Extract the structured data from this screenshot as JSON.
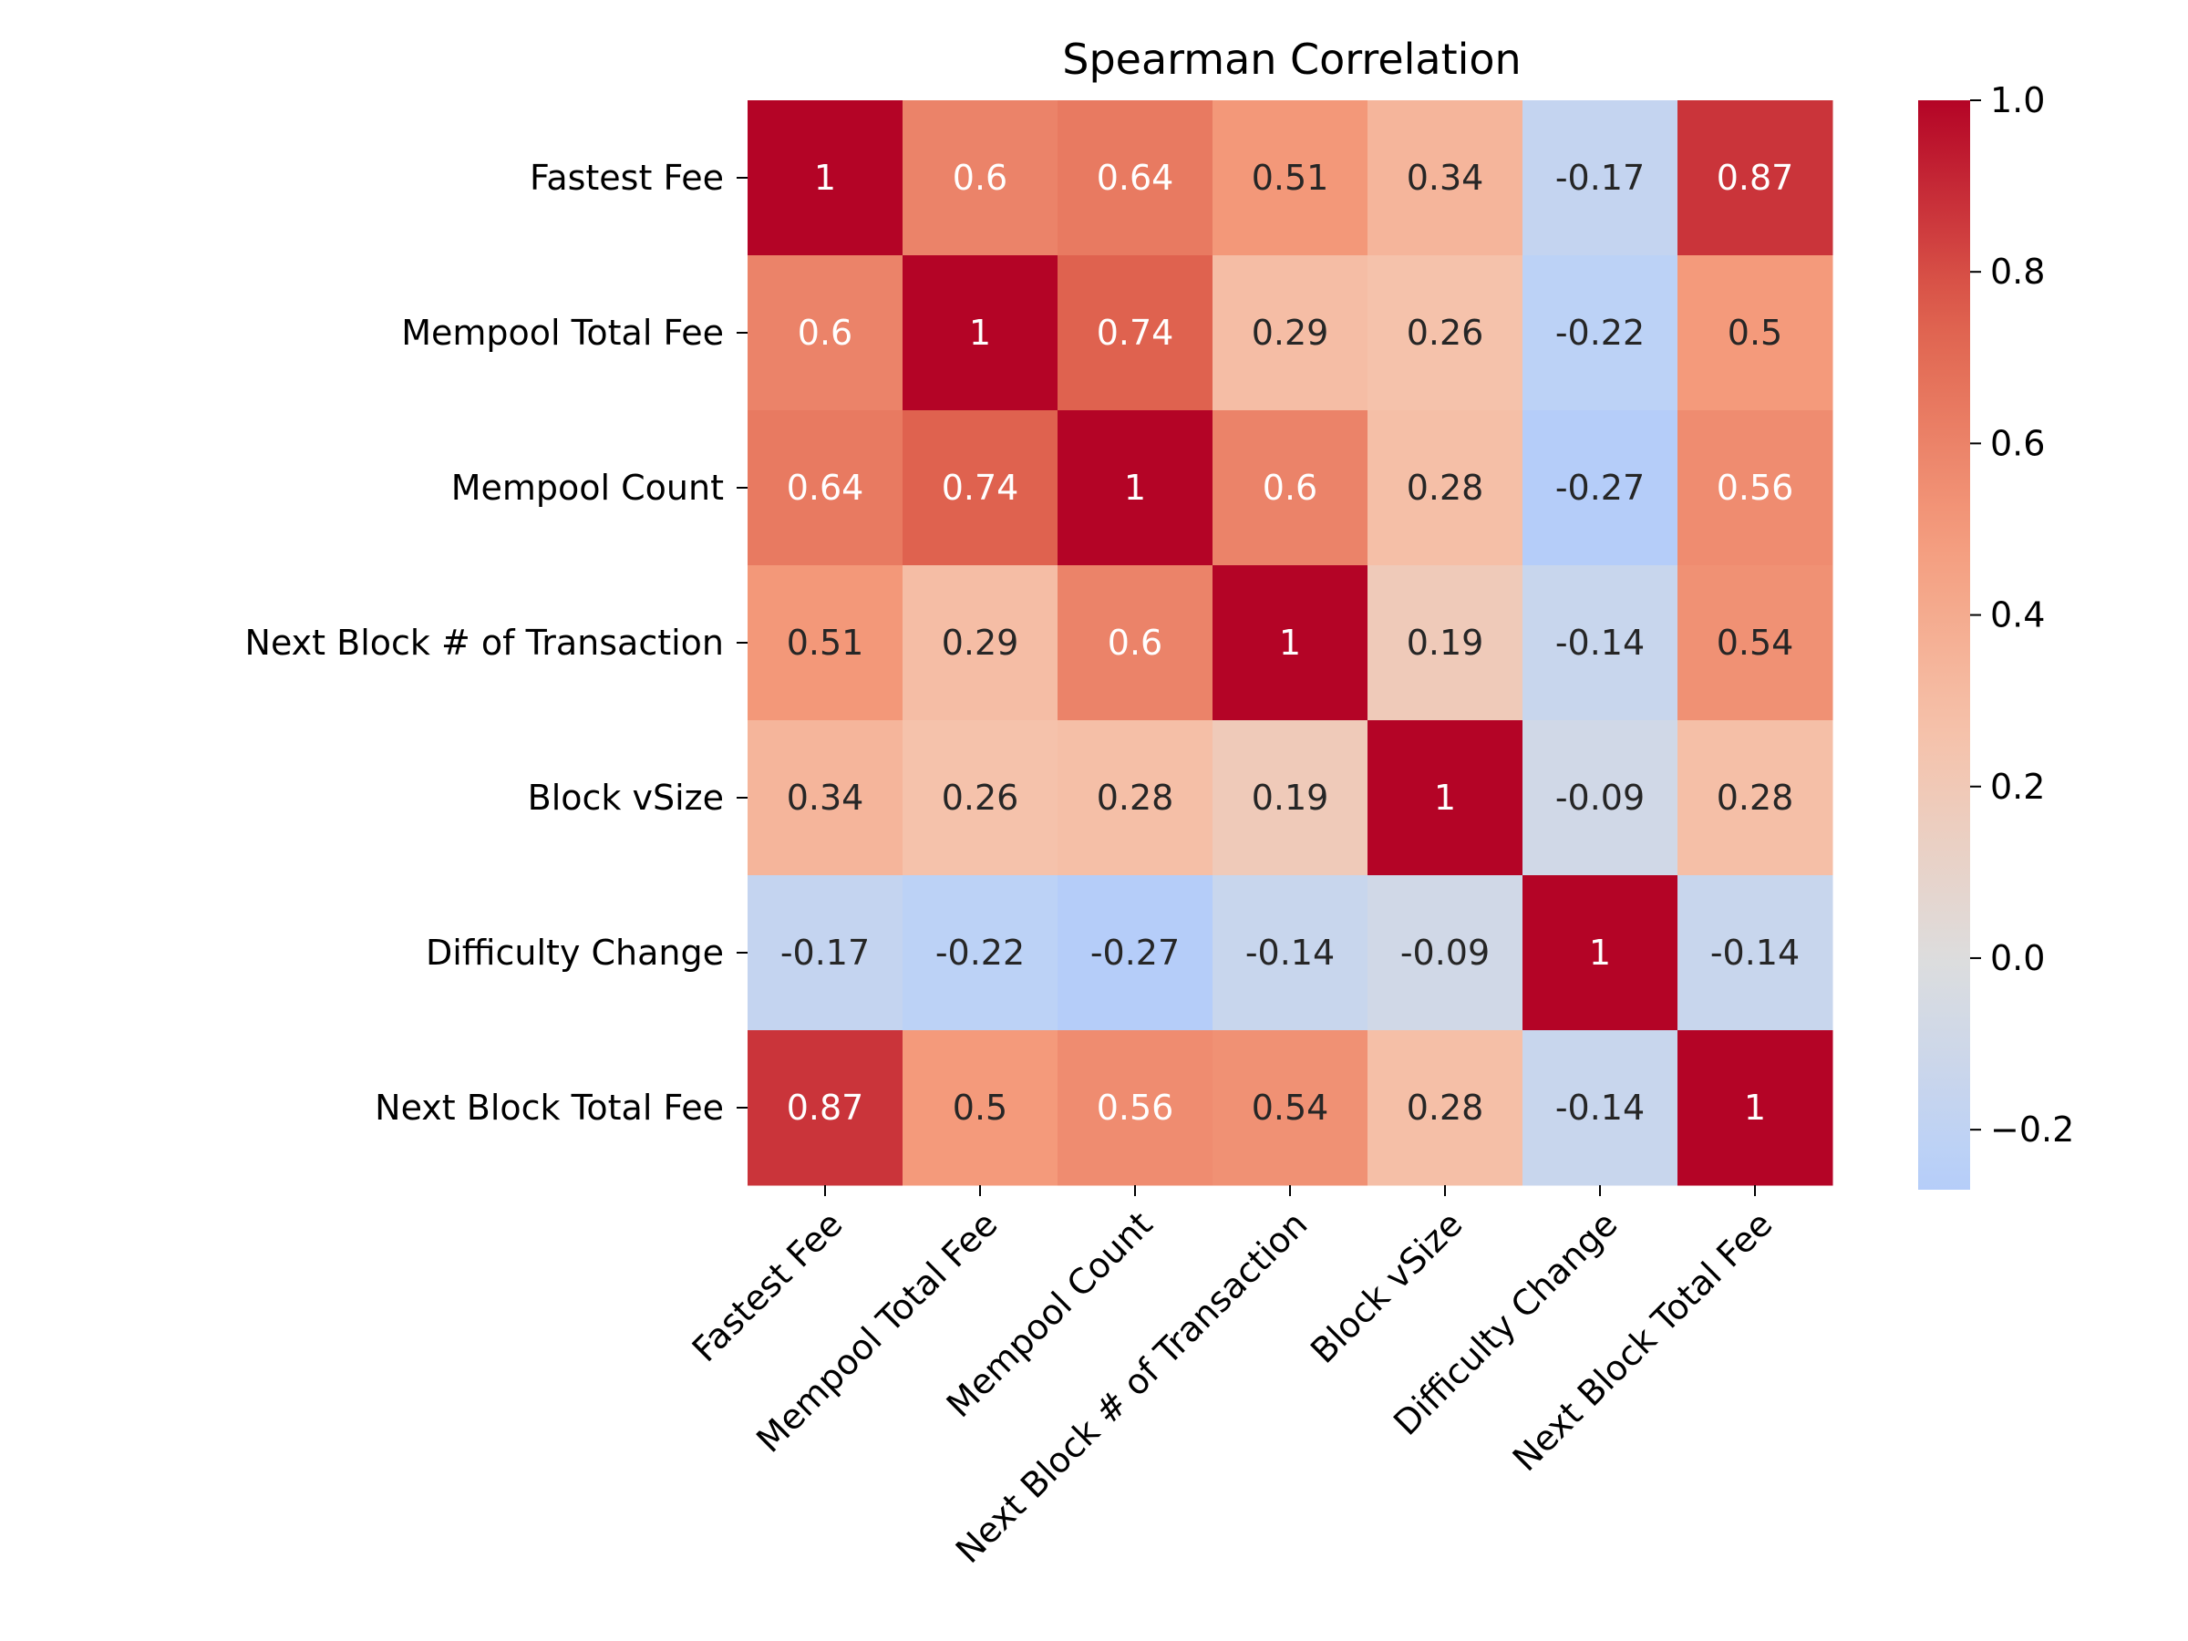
{
  "chart_data": {
    "type": "heatmap",
    "title": "Spearman Correlation",
    "xlabel": "",
    "ylabel": "",
    "labels": [
      "Fastest Fee",
      "Mempool Total Fee",
      "Mempool Count",
      "Next Block # of Transaction",
      "Block vSize",
      "Difficulty Change",
      "Next Block Total Fee"
    ],
    "values": [
      [
        1,
        0.6,
        0.64,
        0.51,
        0.34,
        -0.17,
        0.87
      ],
      [
        0.6,
        1,
        0.74,
        0.29,
        0.26,
        -0.22,
        0.5
      ],
      [
        0.64,
        0.74,
        1,
        0.6,
        0.28,
        -0.27,
        0.56
      ],
      [
        0.51,
        0.29,
        0.6,
        1,
        0.19,
        -0.14,
        0.54
      ],
      [
        0.34,
        0.26,
        0.28,
        0.19,
        1,
        -0.09,
        0.28
      ],
      [
        -0.17,
        -0.22,
        -0.27,
        -0.14,
        -0.09,
        1,
        -0.14
      ],
      [
        0.87,
        0.5,
        0.56,
        0.54,
        0.28,
        -0.14,
        1
      ]
    ],
    "annotation_labels": [
      [
        "1",
        "0.6",
        "0.64",
        "0.51",
        "0.34",
        "-0.17",
        "0.87"
      ],
      [
        "0.6",
        "1",
        "0.74",
        "0.29",
        "0.26",
        "-0.22",
        "0.5"
      ],
      [
        "0.64",
        "0.74",
        "1",
        "0.6",
        "0.28",
        "-0.27",
        "0.56"
      ],
      [
        "0.51",
        "0.29",
        "0.6",
        "1",
        "0.19",
        "-0.14",
        "0.54"
      ],
      [
        "0.34",
        "0.26",
        "0.28",
        "0.19",
        "1",
        "-0.09",
        "0.28"
      ],
      [
        "-0.17",
        "-0.22",
        "-0.27",
        "-0.14",
        "-0.09",
        "1",
        "-0.14"
      ],
      [
        "0.87",
        "0.5",
        "0.56",
        "0.54",
        "0.28",
        "-0.14",
        "1"
      ]
    ],
    "colormap": "coolwarm",
    "color_range": [
      -0.27,
      1.0
    ],
    "colorbar_ticks": [
      1.0,
      0.8,
      0.6,
      0.4,
      0.2,
      0.0,
      -0.2
    ],
    "colorbar_tick_labels": [
      "1.0",
      "0.8",
      "0.6",
      "0.4",
      "0.2",
      "0.0",
      "−0.2"
    ],
    "grid": false,
    "colorbar_position": "right"
  }
}
